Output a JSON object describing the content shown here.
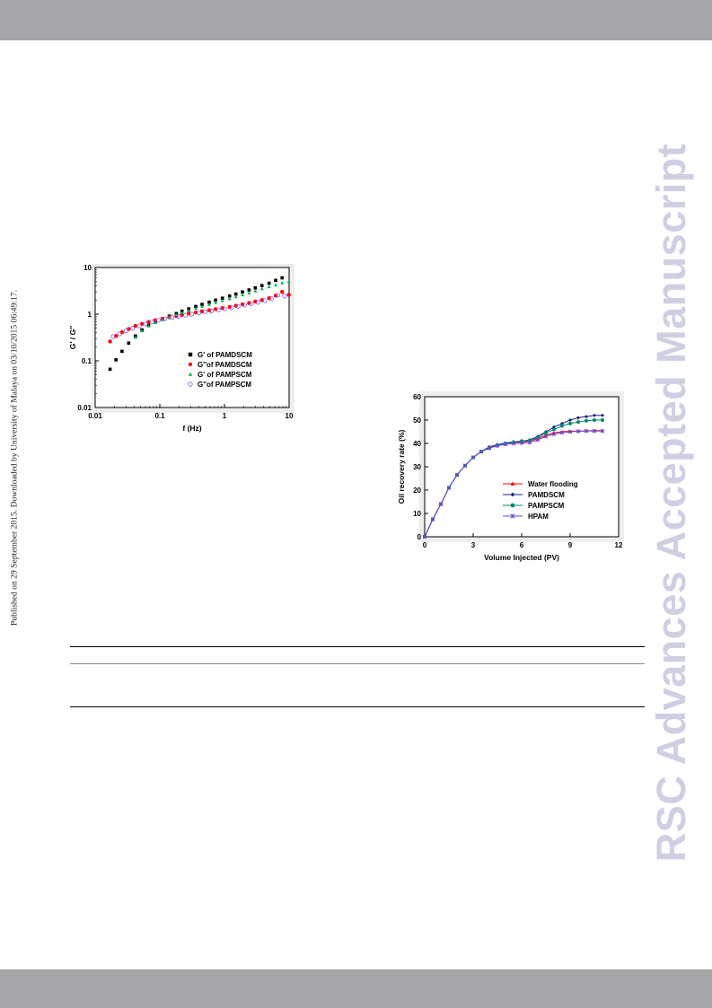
{
  "side_stamp": "Published on 29 September 2015. Downloaded by University of Malaya on 03/10/2015 06:49:17.",
  "watermark": "RSC Advances Accepted Manuscript",
  "colors": {
    "band": "#a6a6a8",
    "watermark": "#cfcfe4"
  },
  "chart_data": [
    {
      "type": "scatter",
      "xscale": "log",
      "yscale": "log",
      "xlabel": "f (Hz)",
      "ylabel": "G' / G''",
      "xlim": [
        0.01,
        10
      ],
      "ylim": [
        0.01,
        10
      ],
      "xticks": [
        "0.01",
        "0.1",
        "1",
        "10"
      ],
      "yticks": [
        "0.01",
        "0.1",
        "1",
        "10"
      ],
      "legend_position": "bottom-right",
      "series": [
        {
          "name": "G' of PAMDSCM",
          "marker": "square",
          "color": "#000000",
          "x": [
            0.017,
            0.021,
            0.026,
            0.033,
            0.042,
            0.053,
            0.067,
            0.085,
            0.11,
            0.14,
            0.18,
            0.22,
            0.28,
            0.36,
            0.45,
            0.58,
            0.73,
            0.93,
            1.2,
            1.5,
            1.9,
            2.4,
            3.0,
            3.8,
            4.9,
            6.2,
            7.8
          ],
          "y": [
            0.066,
            0.105,
            0.16,
            0.24,
            0.34,
            0.46,
            0.58,
            0.69,
            0.8,
            0.91,
            1.03,
            1.16,
            1.3,
            1.46,
            1.62,
            1.8,
            2.0,
            2.2,
            2.45,
            2.7,
            3.0,
            3.3,
            3.65,
            4.1,
            4.6,
            5.3,
            6.0
          ]
        },
        {
          "name": "G''of PAMDSCM",
          "marker": "circle",
          "color": "#ff0000",
          "x": [
            0.017,
            0.021,
            0.026,
            0.033,
            0.042,
            0.053,
            0.067,
            0.085,
            0.11,
            0.14,
            0.18,
            0.22,
            0.28,
            0.36,
            0.45,
            0.58,
            0.73,
            0.93,
            1.2,
            1.5,
            1.9,
            2.4,
            3.0,
            3.8,
            4.9,
            6.2,
            7.8,
            9.9
          ],
          "y": [
            0.26,
            0.34,
            0.41,
            0.48,
            0.56,
            0.62,
            0.68,
            0.74,
            0.8,
            0.86,
            0.91,
            0.97,
            1.03,
            1.09,
            1.15,
            1.21,
            1.28,
            1.35,
            1.43,
            1.52,
            1.62,
            1.73,
            1.86,
            2.0,
            2.2,
            2.5,
            3.0,
            2.6
          ]
        },
        {
          "name": "G' of PAMPSCM",
          "marker": "triangle",
          "color": "#00b050",
          "x": [
            0.042,
            0.053,
            0.067,
            0.085,
            0.11,
            0.14,
            0.18,
            0.22,
            0.28,
            0.36,
            0.45,
            0.58,
            0.73,
            0.93,
            1.2,
            1.5,
            1.9,
            2.4,
            3.0,
            3.8,
            4.9,
            6.2,
            7.8,
            9.9
          ],
          "y": [
            0.32,
            0.44,
            0.56,
            0.66,
            0.76,
            0.86,
            0.97,
            1.08,
            1.2,
            1.33,
            1.47,
            1.62,
            1.78,
            1.95,
            2.15,
            2.35,
            2.6,
            2.85,
            3.15,
            3.5,
            3.85,
            4.25,
            4.7,
            5.0
          ]
        },
        {
          "name": "G''of PAMPSCM",
          "marker": "open-circle",
          "color": "#8c50dc",
          "x": [
            0.019,
            0.024,
            0.03,
            0.038,
            0.048,
            0.06,
            0.076,
            0.096,
            0.12,
            0.155,
            0.195,
            0.25,
            0.31,
            0.4,
            0.5,
            0.63,
            0.8,
            1.0,
            1.28,
            1.62,
            2.05,
            2.6,
            3.3,
            4.2,
            5.3,
            6.7,
            8.5
          ],
          "y": [
            0.33,
            0.38,
            0.44,
            0.5,
            0.56,
            0.62,
            0.68,
            0.74,
            0.8,
            0.85,
            0.9,
            0.95,
            1.0,
            1.06,
            1.12,
            1.18,
            1.24,
            1.3,
            1.38,
            1.46,
            1.56,
            1.68,
            1.8,
            1.95,
            2.15,
            2.55,
            2.45
          ]
        }
      ]
    },
    {
      "type": "line",
      "xlabel": "Volume Injected (PV)",
      "ylabel": "Oil recovery rate (%)",
      "xlim": [
        0,
        12
      ],
      "ylim": [
        0,
        60
      ],
      "xticks": [
        "0",
        "3",
        "6",
        "9",
        "12"
      ],
      "yticks": [
        "0",
        "10",
        "20",
        "30",
        "40",
        "50",
        "60"
      ],
      "legend_position": "bottom-right",
      "series": [
        {
          "name": "Water flooding",
          "marker": "triangle",
          "color": "#ff0000",
          "x": [
            0,
            0.5,
            1,
            1.5,
            2,
            2.5,
            3,
            3.5,
            4,
            4.5,
            5,
            5.5,
            6,
            6.5,
            7,
            7.5,
            8,
            8.5,
            9,
            9.5,
            10,
            10.5,
            11
          ],
          "y": [
            0,
            7.5,
            14,
            21,
            26.5,
            30.5,
            34,
            36.5,
            38,
            39,
            40,
            40.3,
            40.5,
            41,
            42,
            43.5,
            44.5,
            45,
            45.2,
            45.3,
            45.4,
            45.5,
            45.5
          ]
        },
        {
          "name": "PAMDSCM",
          "marker": "diamond",
          "color": "#1a2180",
          "x": [
            0,
            0.5,
            1,
            1.5,
            2,
            2.5,
            3,
            3.5,
            4,
            4.5,
            5,
            5.5,
            6,
            6.5,
            7,
            7.5,
            8,
            8.5,
            9,
            9.5,
            10,
            10.5,
            11
          ],
          "y": [
            0,
            7.5,
            14,
            21,
            26.5,
            30.5,
            34,
            36.5,
            38.5,
            39.5,
            40.2,
            40.7,
            41,
            41.5,
            43,
            45,
            47,
            48.5,
            50,
            51,
            51.5,
            52,
            52
          ]
        },
        {
          "name": "PAMPSCM",
          "marker": "circle",
          "color": "#008a70",
          "x": [
            0,
            0.5,
            1,
            1.5,
            2,
            2.5,
            3,
            3.5,
            4,
            4.5,
            5,
            5.5,
            6,
            6.5,
            7,
            7.5,
            8,
            8.5,
            9,
            9.5,
            10,
            10.5,
            11
          ],
          "y": [
            0,
            7.5,
            14,
            21,
            26.5,
            30.5,
            34,
            36.5,
            38,
            39.2,
            40,
            40.5,
            41,
            41.3,
            42.5,
            44.5,
            46,
            47.5,
            48.5,
            49.2,
            49.7,
            50,
            50
          ]
        },
        {
          "name": "HPAM",
          "marker": "star",
          "color": "#6a4bd0",
          "x": [
            0,
            0.5,
            1,
            1.5,
            2,
            2.5,
            3,
            3.5,
            4,
            4.5,
            5,
            5.5,
            6,
            6.5,
            7,
            7.5,
            8,
            8.5,
            9,
            9.5,
            10,
            10.5,
            11
          ],
          "y": [
            0,
            7.5,
            14,
            21,
            26.5,
            30.5,
            34,
            36.5,
            38,
            39,
            39.6,
            40,
            40.2,
            40.4,
            41.5,
            43,
            44,
            44.6,
            45,
            45.2,
            45.3,
            45.3,
            45.3
          ]
        }
      ]
    }
  ]
}
